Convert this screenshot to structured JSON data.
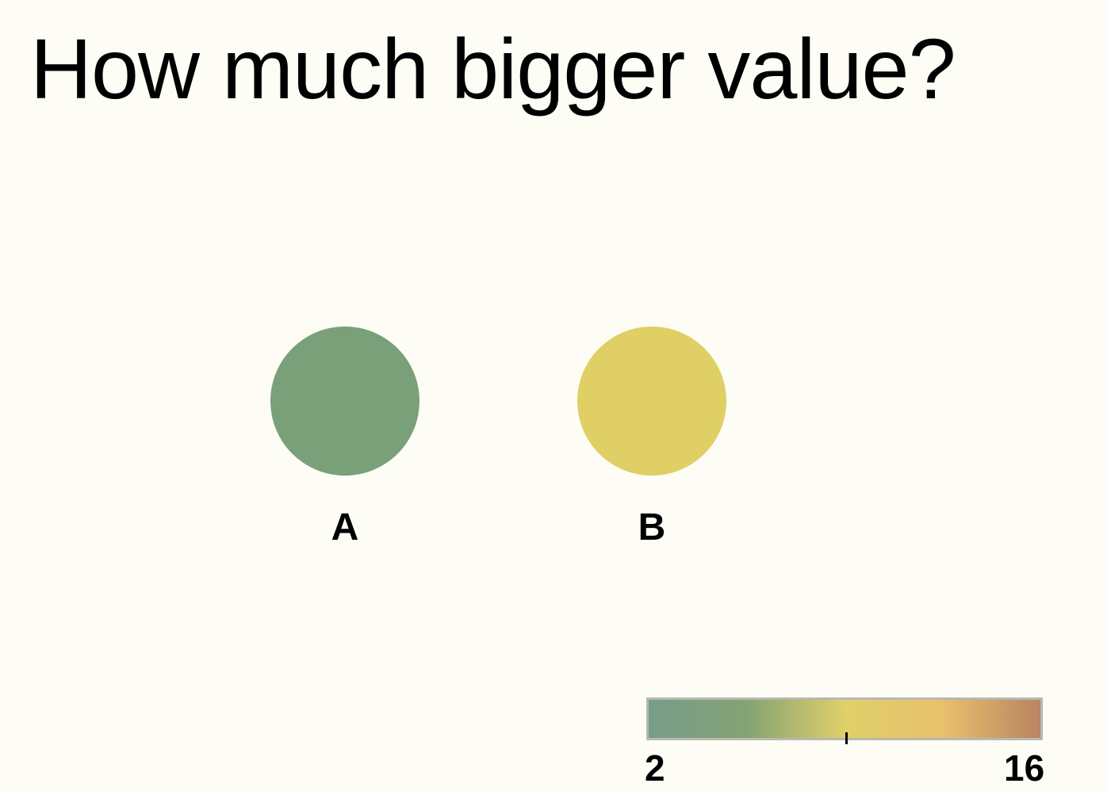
{
  "title": "How much bigger value?",
  "circles": [
    {
      "label": "A",
      "color": "#7aa07a"
    },
    {
      "label": "B",
      "color": "#dfcf64"
    }
  ],
  "color_scale": {
    "min_label": "2",
    "max_label": "16",
    "min": 2,
    "max": 16,
    "marker_value": 9,
    "gradient_colors": [
      "#779d8b",
      "#84a273",
      "#dfd06a",
      "#e9c06c",
      "#b98463"
    ]
  }
}
